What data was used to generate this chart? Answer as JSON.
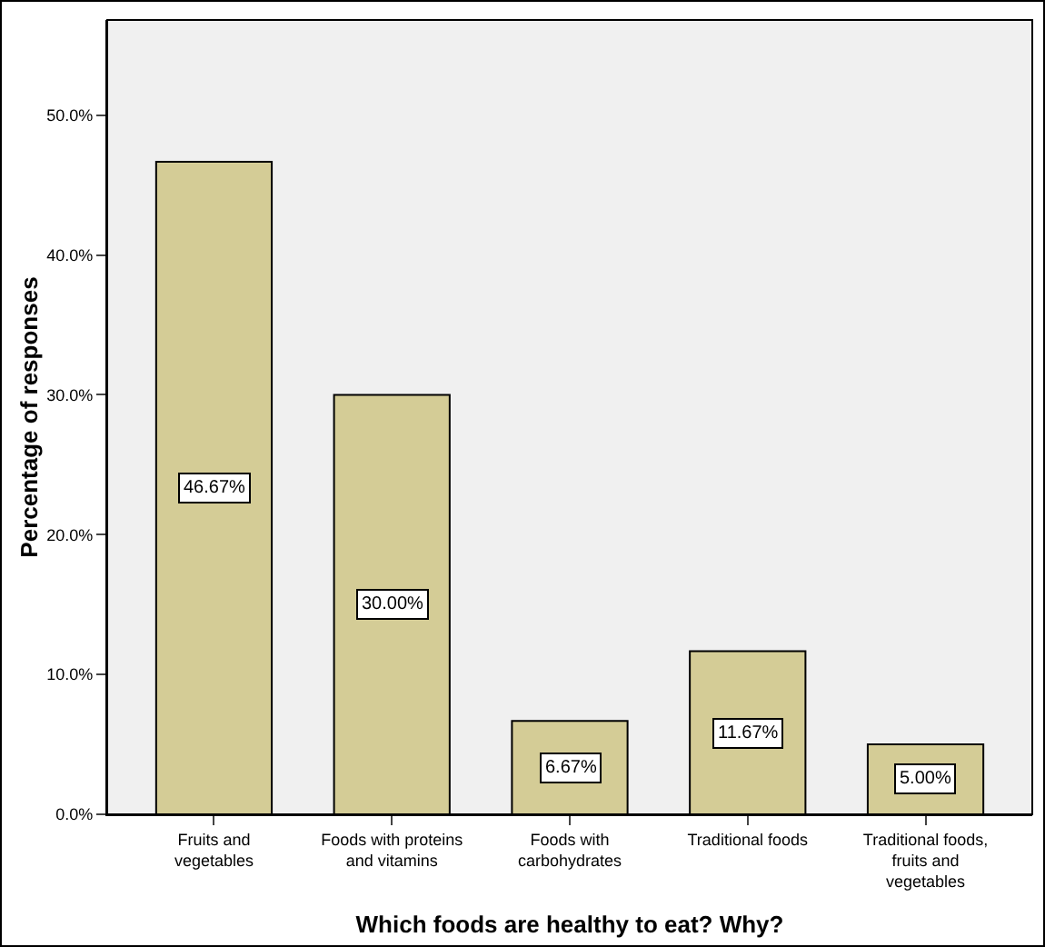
{
  "chart_data": {
    "type": "bar",
    "xlabel": "Which foods are healthy to eat? Why?",
    "ylabel": "Percentage of responses",
    "categories": [
      "Fruits and vegetables",
      "Foods with proteins and vitamins",
      "Foods with carbohydrates",
      "Traditional foods",
      "Traditional foods, fruits and vegetables"
    ],
    "values": [
      46.67,
      30.0,
      6.67,
      11.67,
      5.0
    ],
    "value_labels": [
      "46.67%",
      "30.00%",
      "6.67%",
      "11.67%",
      "5.00%"
    ],
    "color": "#d4cc96",
    "ylim": [
      0,
      56.8
    ],
    "yticks": [
      {
        "value": 0,
        "label": "0.0%"
      },
      {
        "value": 10,
        "label": "10.0%"
      },
      {
        "value": 20,
        "label": "20.0%"
      },
      {
        "value": 30,
        "label": "30.0%"
      },
      {
        "value": 40,
        "label": "40.0%"
      },
      {
        "value": 50,
        "label": "50.0%"
      }
    ],
    "grid": false
  }
}
